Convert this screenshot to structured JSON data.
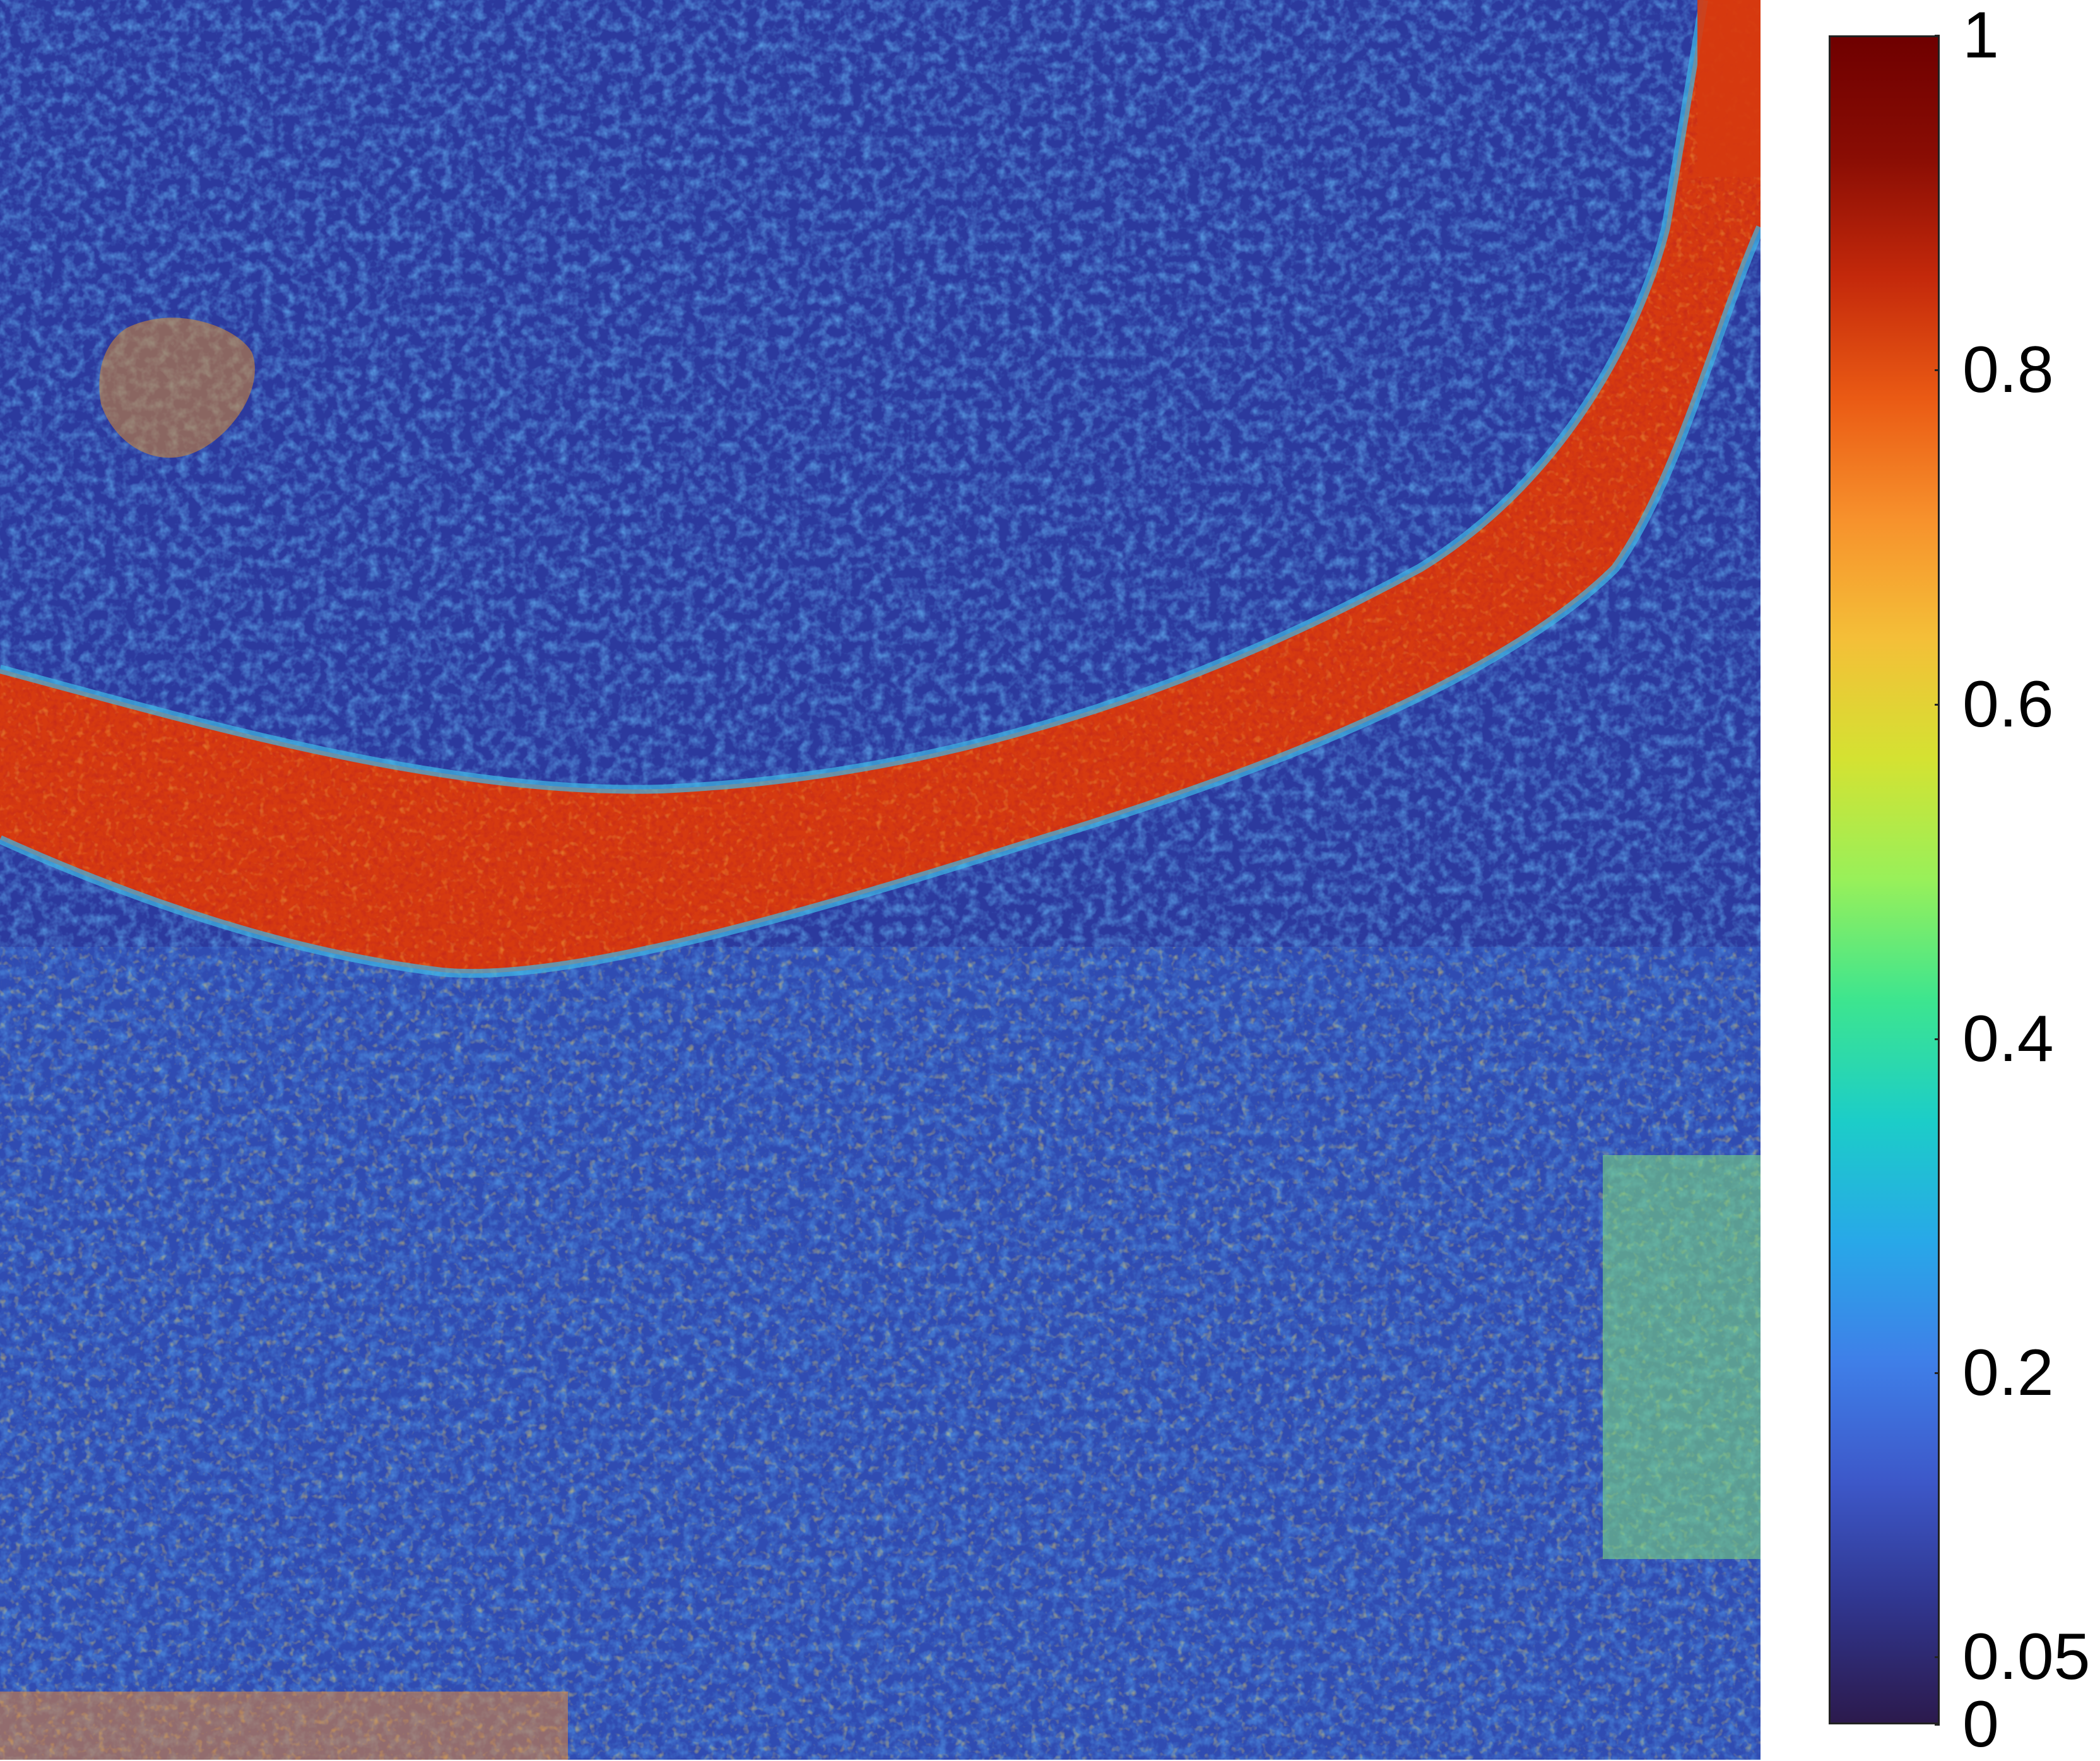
{
  "colorbar": {
    "ticks": [
      {
        "value": 1,
        "label": "1"
      },
      {
        "value": 0.8,
        "label": "0.8"
      },
      {
        "value": 0.6,
        "label": "0.6"
      },
      {
        "value": 0.4,
        "label": "0.4"
      },
      {
        "value": 0.2,
        "label": "0.2"
      },
      {
        "value": 0.05,
        "label": "0.05"
      },
      {
        "value": 0,
        "label": "0"
      }
    ],
    "colormap": [
      "#2c1a4d",
      "#30368f",
      "#3d58c9",
      "#3f7fe8",
      "#28a8e8",
      "#1ccdc8",
      "#3de58f",
      "#98f05a",
      "#d4e232",
      "#f4bf38",
      "#f7912c",
      "#ea5a14",
      "#c4290b",
      "#8a0d04",
      "#6f0000"
    ],
    "colormap_top": "#6f0000",
    "colormap_bottom": "#2c1a4d",
    "colormap_stops_note": ""
  },
  "map": {
    "scene": "urban-river-heatmap",
    "background_color": "#2c3a9e",
    "river_color": "#d63a10",
    "urban_noise_color": "#3a8ff0"
  }
}
